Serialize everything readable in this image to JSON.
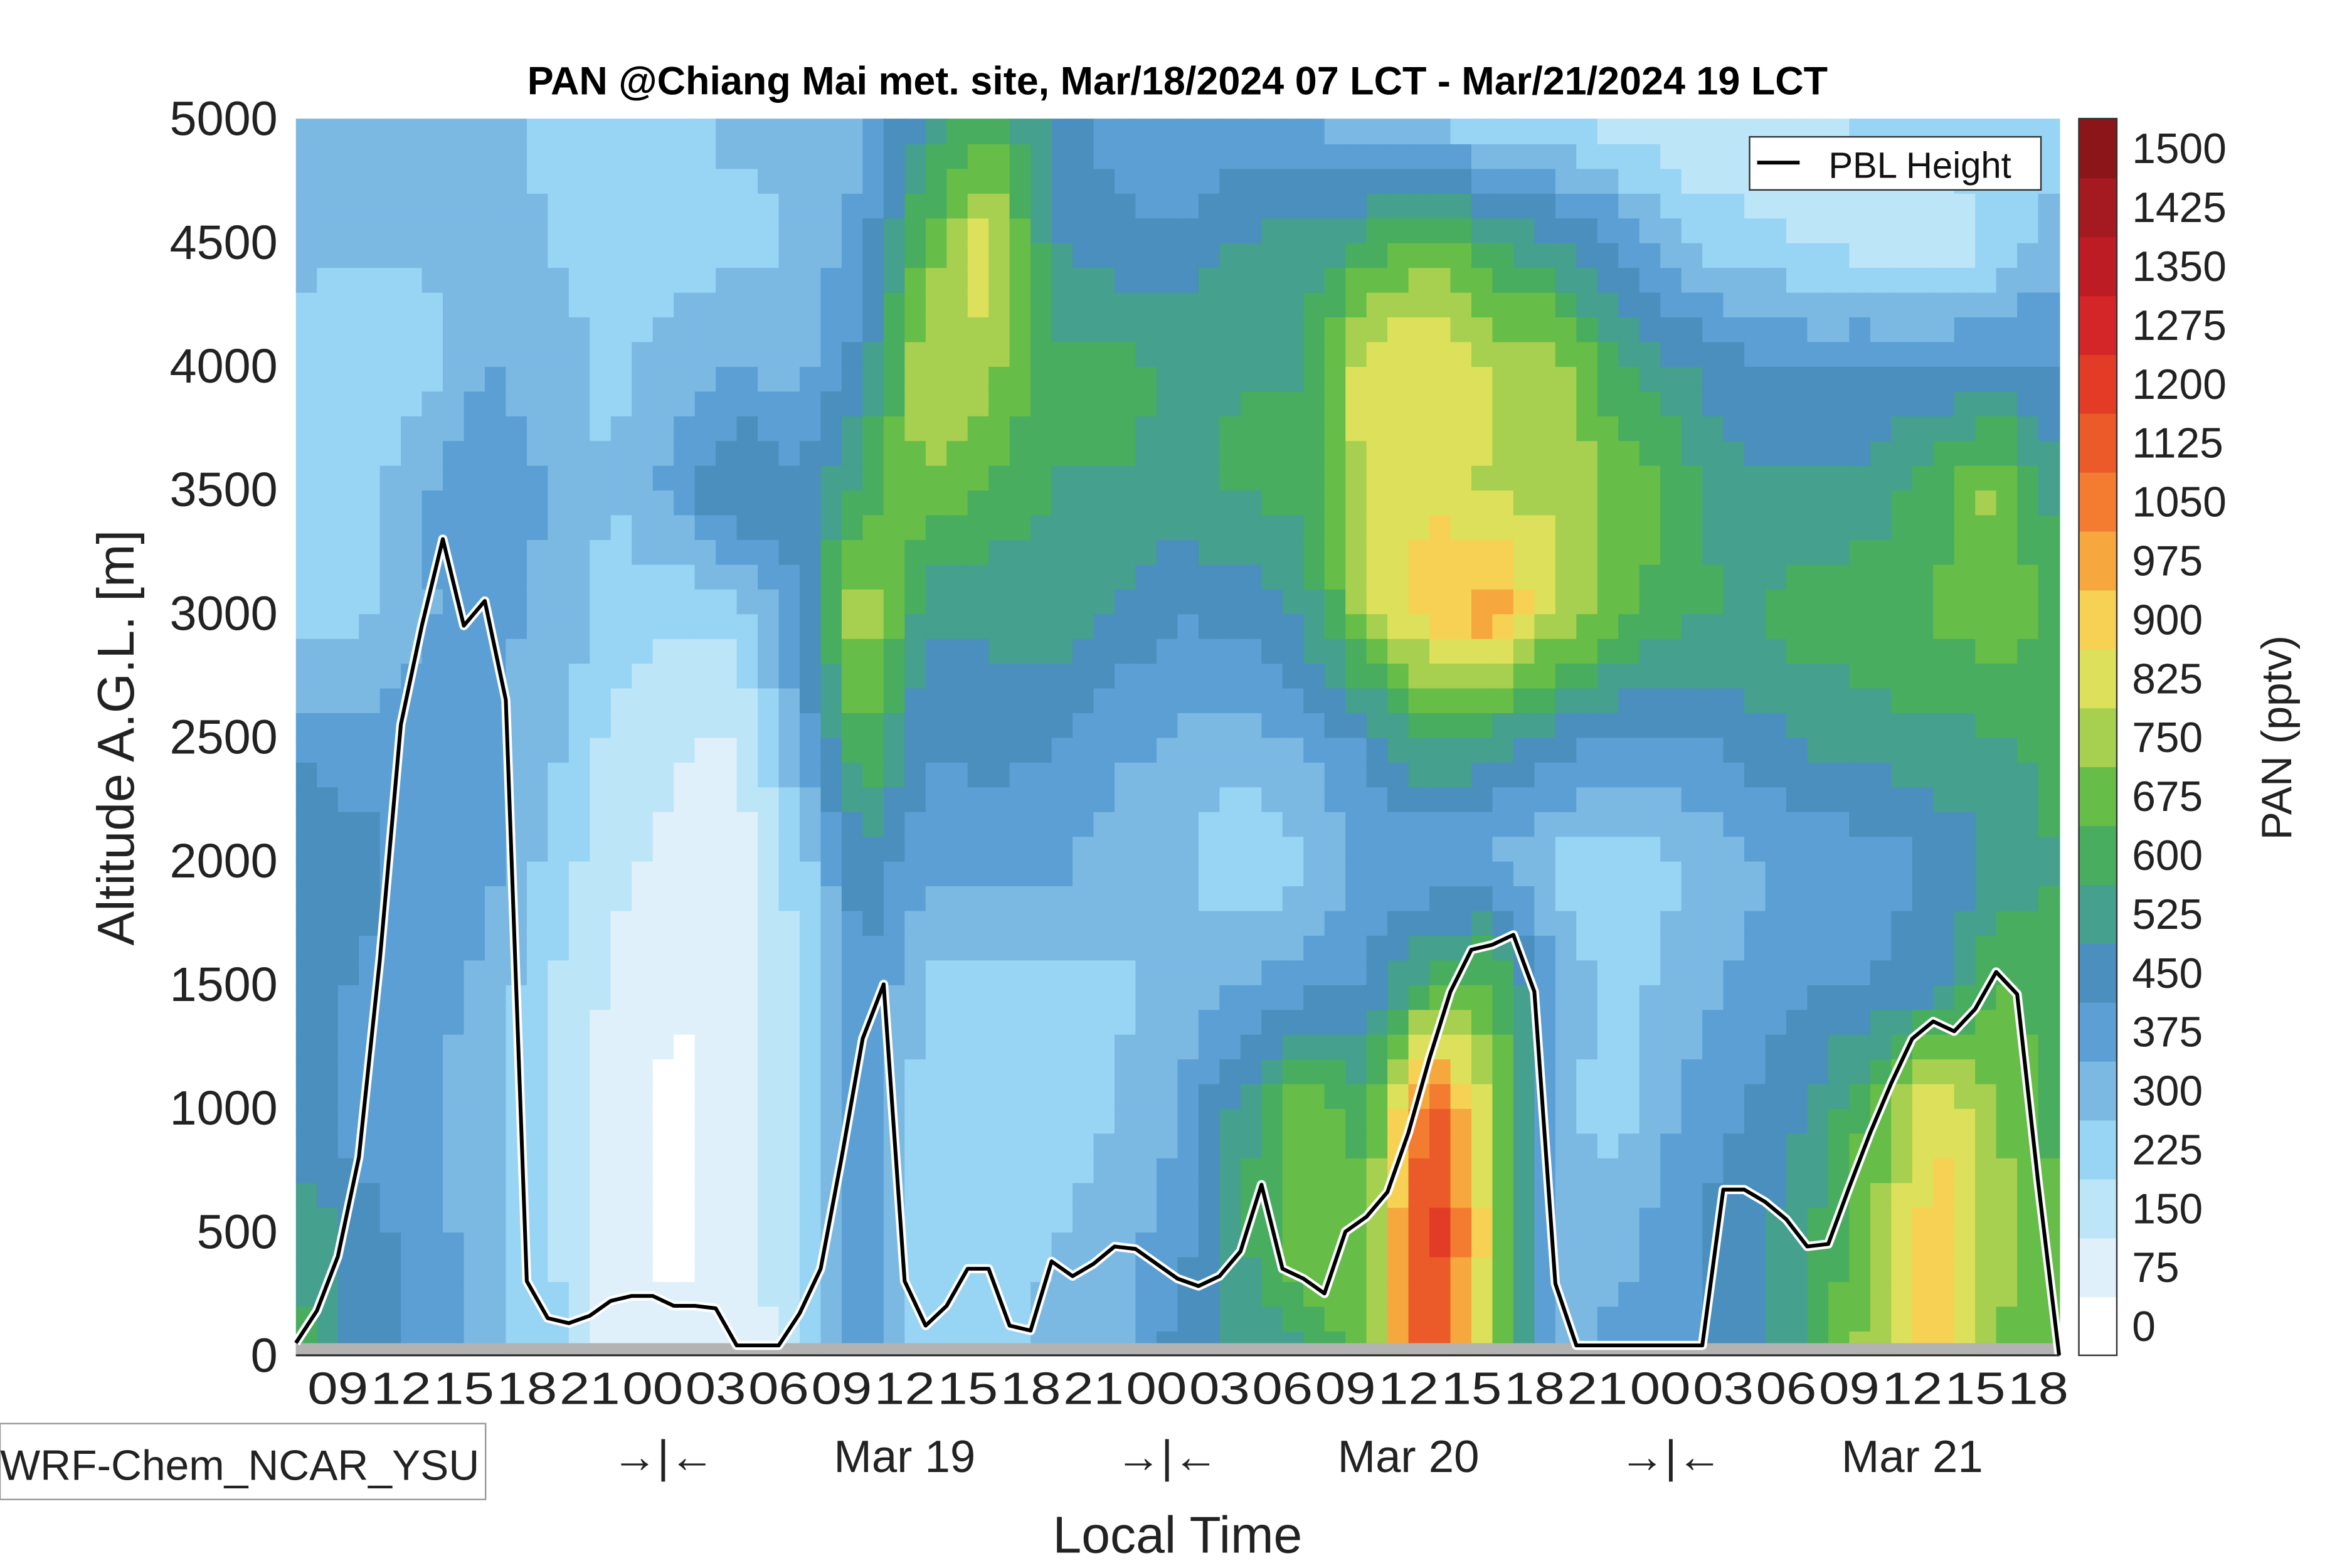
{
  "chart_data": {
    "type": "heatmap",
    "title": "PAN @Chiang Mai met. site, Mar/18/2024 07 LCT - Mar/21/2024 19 LCT",
    "xlabel": "Local Time",
    "ylabel": "Altitude A.G.L. [m]",
    "colorbar_label": "PAN (pptv)",
    "model_label": "WRF-Chem_NCAR_YSU",
    "legend": {
      "entries": [
        "PBL Height"
      ],
      "placement": "top-right"
    },
    "xlim_hours": [
      0,
      84
    ],
    "ylim": [
      0,
      5000
    ],
    "y_ticks": [
      0,
      500,
      1000,
      1500,
      2000,
      2500,
      3000,
      3500,
      4000,
      4500,
      5000
    ],
    "x_tick_hours": [
      2,
      5,
      8,
      11,
      14,
      17,
      20,
      23,
      26,
      29,
      32,
      35,
      38,
      41,
      44,
      47,
      50,
      53,
      56,
      59,
      62,
      65,
      68,
      71,
      74,
      77,
      80,
      83
    ],
    "x_tick_labels": [
      "09",
      "12",
      "15",
      "18",
      "21",
      "00",
      "03",
      "06",
      "09",
      "12",
      "15",
      "18",
      "21",
      "00",
      "03",
      "06",
      "09",
      "12",
      "15",
      "18",
      "21",
      "00",
      "03",
      "06",
      "09",
      "12",
      "15",
      "18"
    ],
    "day_labels": [
      {
        "hour": 17.5,
        "text": "→|←"
      },
      {
        "hour": 29,
        "text": "Mar 19"
      },
      {
        "hour": 41.5,
        "text": "→|←"
      },
      {
        "hour": 53,
        "text": "Mar 20"
      },
      {
        "hour": 65.5,
        "text": "→|←"
      },
      {
        "hour": 77,
        "text": "Mar 21"
      }
    ],
    "colorbar_levels": [
      0,
      75,
      150,
      225,
      300,
      375,
      450,
      525,
      600,
      675,
      750,
      825,
      900,
      975,
      1050,
      1125,
      1200,
      1275,
      1350,
      1425,
      1500
    ],
    "colorbar_colors": [
      "#ffffff",
      "#dff0fa",
      "#bde5f8",
      "#98d4f3",
      "#7bb9e3",
      "#5b9fd4",
      "#4a8fbd",
      "#45a08e",
      "#48ad5f",
      "#66bd48",
      "#a7cf50",
      "#dde05a",
      "#f7d154",
      "#f6a83f",
      "#f47c30",
      "#ea5b29",
      "#e23c26",
      "#d42528",
      "#bd1c24",
      "#a51920",
      "#8b1519"
    ],
    "grid_hours": [
      0,
      3,
      6,
      9,
      12,
      15,
      18,
      21,
      24,
      27,
      30,
      33,
      36,
      39,
      42,
      45,
      48,
      51,
      54,
      57,
      60,
      63,
      66,
      69,
      72,
      75,
      78,
      81,
      84
    ],
    "grid_altitudes": [
      0,
      500,
      1000,
      1500,
      2000,
      2500,
      3000,
      3500,
      4000,
      4500,
      5000
    ],
    "pan_grid": [
      [
        600,
        450,
        375,
        300,
        225,
        75,
        50,
        40,
        150,
        400,
        225,
        225,
        300,
        300,
        450,
        500,
        550,
        700,
        1200,
        700,
        300,
        375,
        400,
        450,
        550,
        750,
        900,
        700,
        650
      ],
      [
        550,
        450,
        375,
        300,
        200,
        60,
        20,
        60,
        200,
        400,
        225,
        200,
        250,
        300,
        375,
        550,
        720,
        650,
        1250,
        800,
        300,
        300,
        400,
        450,
        550,
        700,
        900,
        750,
        650
      ],
      [
        450,
        375,
        350,
        300,
        200,
        80,
        20,
        60,
        200,
        400,
        225,
        200,
        230,
        260,
        330,
        520,
        700,
        600,
        1150,
        750,
        280,
        230,
        350,
        420,
        480,
        650,
        880,
        720,
        600
      ],
      [
        475,
        400,
        375,
        320,
        200,
        100,
        40,
        80,
        200,
        420,
        250,
        250,
        250,
        250,
        300,
        330,
        380,
        420,
        600,
        680,
        330,
        220,
        300,
        350,
        400,
        420,
        450,
        650,
        600
      ],
      [
        475,
        450,
        375,
        375,
        240,
        130,
        100,
        60,
        220,
        470,
        350,
        350,
        360,
        300,
        270,
        200,
        240,
        360,
        330,
        330,
        240,
        210,
        260,
        320,
        370,
        370,
        420,
        500,
        560
      ],
      [
        400,
        360,
        370,
        360,
        300,
        170,
        120,
        100,
        350,
        650,
        420,
        450,
        420,
        360,
        330,
        300,
        350,
        430,
        600,
        520,
        450,
        400,
        400,
        450,
        500,
        520,
        550,
        550,
        600
      ],
      [
        200,
        240,
        330,
        360,
        320,
        230,
        200,
        200,
        420,
        800,
        500,
        500,
        540,
        470,
        420,
        430,
        500,
        760,
        900,
        1000,
        780,
        680,
        580,
        560,
        600,
        620,
        640,
        700,
        600
      ],
      [
        200,
        230,
        330,
        420,
        330,
        260,
        360,
        520,
        430,
        600,
        700,
        620,
        560,
        560,
        540,
        570,
        580,
        820,
        860,
        770,
        780,
        700,
        600,
        500,
        500,
        520,
        600,
        740,
        500
      ],
      [
        250,
        200,
        230,
        340,
        300,
        240,
        300,
        330,
        300,
        450,
        800,
        750,
        580,
        580,
        560,
        560,
        560,
        850,
        860,
        780,
        760,
        560,
        500,
        420,
        400,
        420,
        420,
        430,
        420
      ],
      [
        270,
        280,
        270,
        300,
        260,
        240,
        230,
        240,
        270,
        380,
        650,
        850,
        500,
        440,
        430,
        500,
        510,
        580,
        700,
        570,
        500,
        400,
        260,
        220,
        180,
        150,
        110,
        200,
        300
      ],
      [
        300,
        300,
        300,
        280,
        250,
        240,
        240,
        280,
        270,
        320,
        500,
        620,
        470,
        380,
        330,
        350,
        330,
        260,
        230,
        200,
        190,
        150,
        110,
        100,
        170,
        200,
        250,
        220,
        230
      ]
    ],
    "pbl_height": {
      "hours": [
        0,
        1,
        2,
        3,
        4,
        5,
        6,
        7,
        8,
        9,
        10,
        11,
        12,
        13,
        14,
        15,
        16,
        17,
        18,
        19,
        20,
        21,
        22,
        23,
        24,
        25,
        26,
        27,
        28,
        29,
        30,
        31,
        32,
        33,
        34,
        35,
        36,
        37,
        38,
        39,
        40,
        41,
        42,
        43,
        44,
        45,
        46,
        47,
        48,
        49,
        50,
        51,
        52,
        53,
        54,
        55,
        56,
        57,
        58,
        59,
        60,
        61,
        62,
        63,
        64,
        65,
        66,
        67,
        68,
        69,
        70,
        71,
        72,
        73,
        74,
        75,
        76,
        77,
        78,
        79,
        80,
        81,
        82,
        83,
        84
      ],
      "values": [
        50,
        180,
        400,
        800,
        1600,
        2550,
        2950,
        3300,
        2950,
        3050,
        2650,
        300,
        150,
        130,
        160,
        220,
        240,
        240,
        200,
        200,
        190,
        40,
        40,
        40,
        170,
        350,
        800,
        1280,
        1500,
        300,
        120,
        200,
        350,
        350,
        120,
        100,
        380,
        320,
        370,
        440,
        430,
        370,
        310,
        280,
        320,
        420,
        690,
        350,
        310,
        250,
        500,
        560,
        660,
        900,
        1200,
        1470,
        1640,
        1660,
        1700,
        1470,
        290,
        40,
        40,
        40,
        40,
        40,
        40,
        40,
        670,
        670,
        620,
        550,
        440,
        450,
        680,
        900,
        1100,
        1280,
        1350,
        1310,
        1400,
        1550,
        1460,
        700,
        0
      ]
    }
  }
}
